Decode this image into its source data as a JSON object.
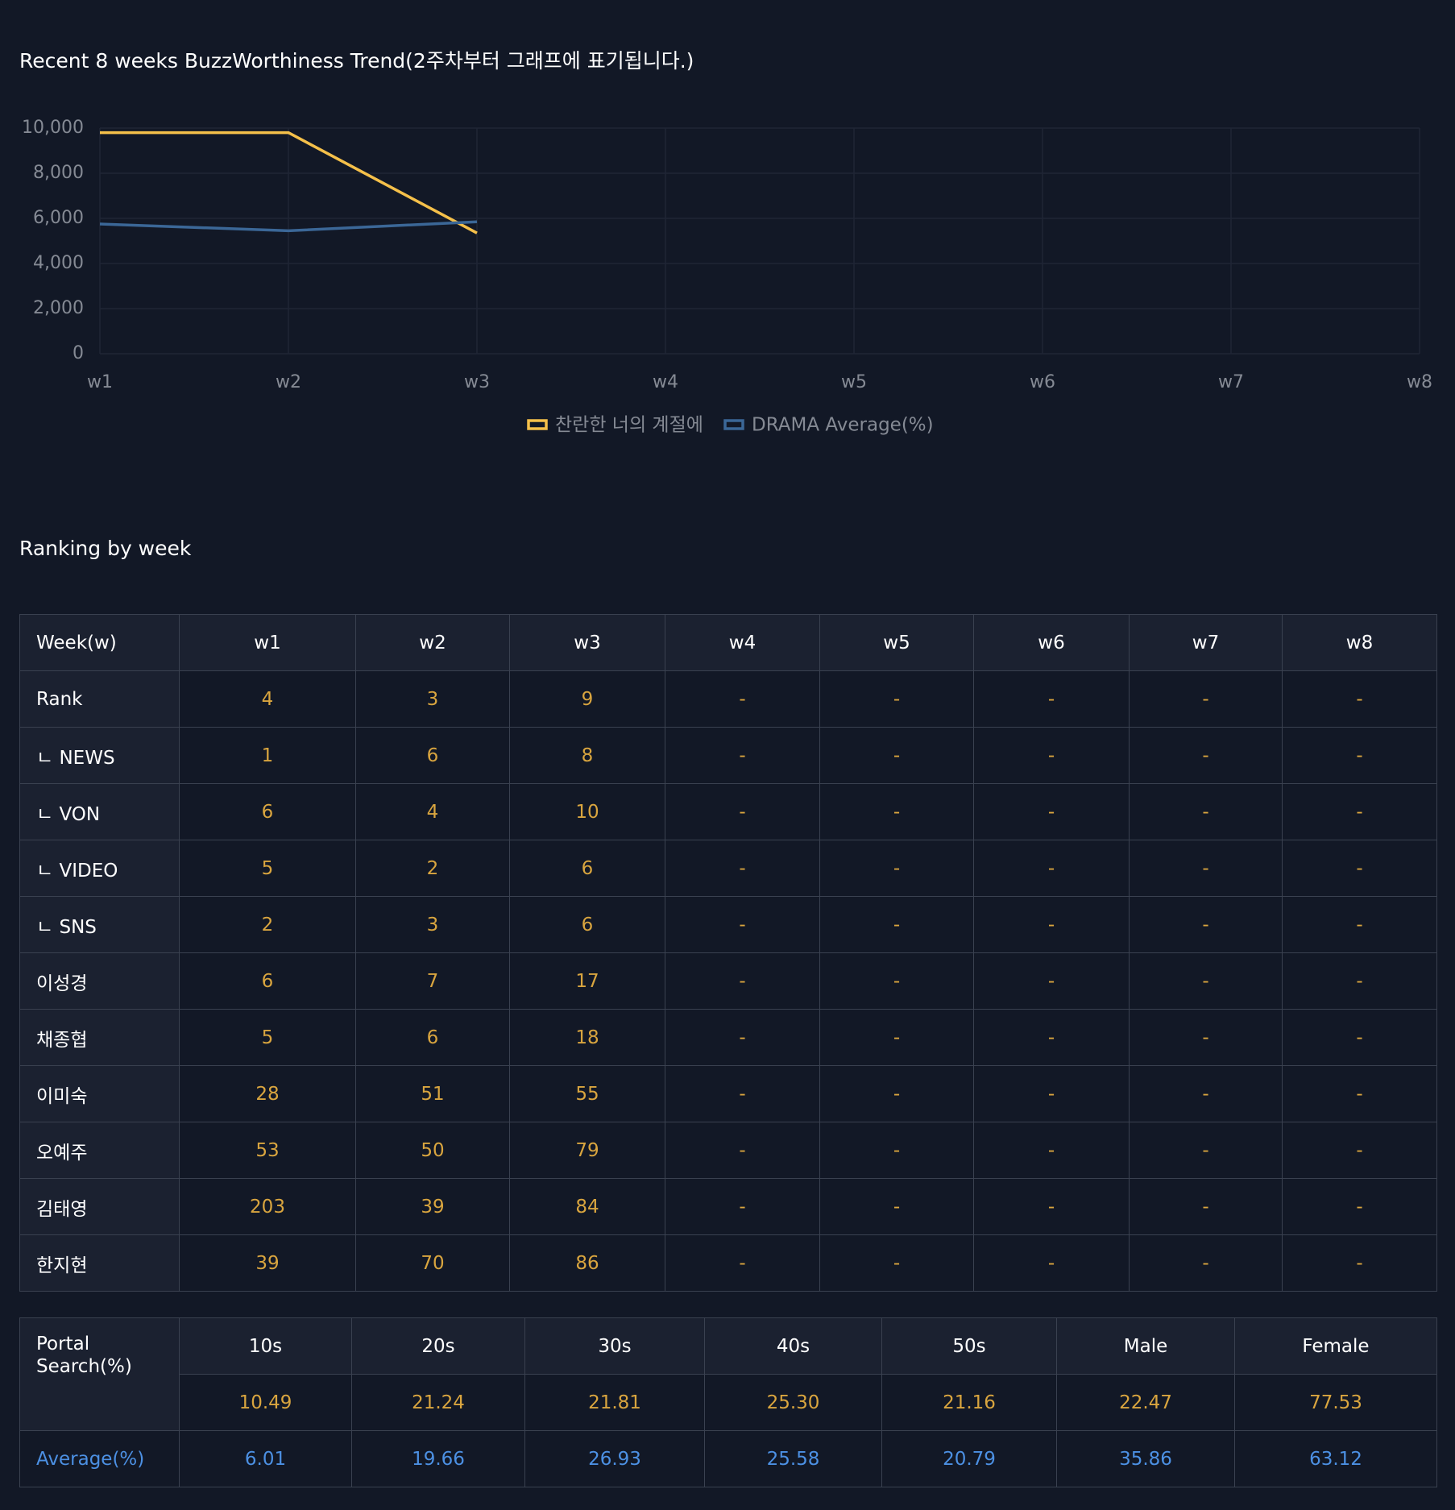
{
  "chart_data": {
    "type": "line",
    "title": "Recent 8 weeks BuzzWorthiness Trend(2주차부터 그래프에 표기됩니다.)",
    "categories": [
      "w1",
      "w2",
      "w3",
      "w4",
      "w5",
      "w6",
      "w7",
      "w8"
    ],
    "series": [
      {
        "name": "찬란한 너의 계절에",
        "color": "#f5c04a",
        "values": [
          9800,
          9800,
          5350,
          null,
          null,
          null,
          null,
          null
        ]
      },
      {
        "name": "DRAMA Average(%)",
        "color": "#3b6797",
        "values": [
          5750,
          5450,
          5850,
          null,
          null,
          null,
          null,
          null
        ]
      }
    ],
    "ylim": [
      0,
      10000
    ],
    "yticks": [
      0,
      {
        "value": 2000,
        "label": "2,000"
      },
      {
        "value": 4000,
        "label": "4,000"
      },
      {
        "value": 6000,
        "label": "6,000"
      },
      {
        "value": 8000,
        "label": "8,000"
      },
      {
        "value": 10000,
        "label": "10,000"
      }
    ],
    "grid": true,
    "legend": "bottom"
  },
  "ranking": {
    "title": "Ranking by week",
    "header": [
      "Week(w)",
      "w1",
      "w2",
      "w3",
      "w4",
      "w5",
      "w6",
      "w7",
      "w8"
    ],
    "rows": [
      [
        "Rank",
        "4",
        "3",
        "9",
        "-",
        "-",
        "-",
        "-",
        "-"
      ],
      [
        "ㄴ NEWS",
        "1",
        "6",
        "8",
        "-",
        "-",
        "-",
        "-",
        "-"
      ],
      [
        "ㄴ VON",
        "6",
        "4",
        "10",
        "-",
        "-",
        "-",
        "-",
        "-"
      ],
      [
        "ㄴ VIDEO",
        "5",
        "2",
        "6",
        "-",
        "-",
        "-",
        "-",
        "-"
      ],
      [
        "ㄴ SNS",
        "2",
        "3",
        "6",
        "-",
        "-",
        "-",
        "-",
        "-"
      ],
      [
        "이성경",
        "6",
        "7",
        "17",
        "-",
        "-",
        "-",
        "-",
        "-"
      ],
      [
        "채종협",
        "5",
        "6",
        "18",
        "-",
        "-",
        "-",
        "-",
        "-"
      ],
      [
        "이미숙",
        "28",
        "51",
        "55",
        "-",
        "-",
        "-",
        "-",
        "-"
      ],
      [
        "오예주",
        "53",
        "50",
        "79",
        "-",
        "-",
        "-",
        "-",
        "-"
      ],
      [
        "김태영",
        "203",
        "39",
        "84",
        "-",
        "-",
        "-",
        "-",
        "-"
      ],
      [
        "한지현",
        "39",
        "70",
        "86",
        "-",
        "-",
        "-",
        "-",
        "-"
      ]
    ]
  },
  "portal": {
    "label": "Portal Search(%)",
    "header": [
      "10s",
      "20s",
      "30s",
      "40s",
      "50s",
      "Male",
      "Female"
    ],
    "values": [
      "10.49",
      "21.24",
      "21.81",
      "25.30",
      "21.16",
      "22.47",
      "77.53"
    ],
    "average_label": "Average(%)",
    "average": [
      "6.01",
      "19.66",
      "26.93",
      "25.58",
      "20.79",
      "35.86",
      "63.12"
    ]
  }
}
